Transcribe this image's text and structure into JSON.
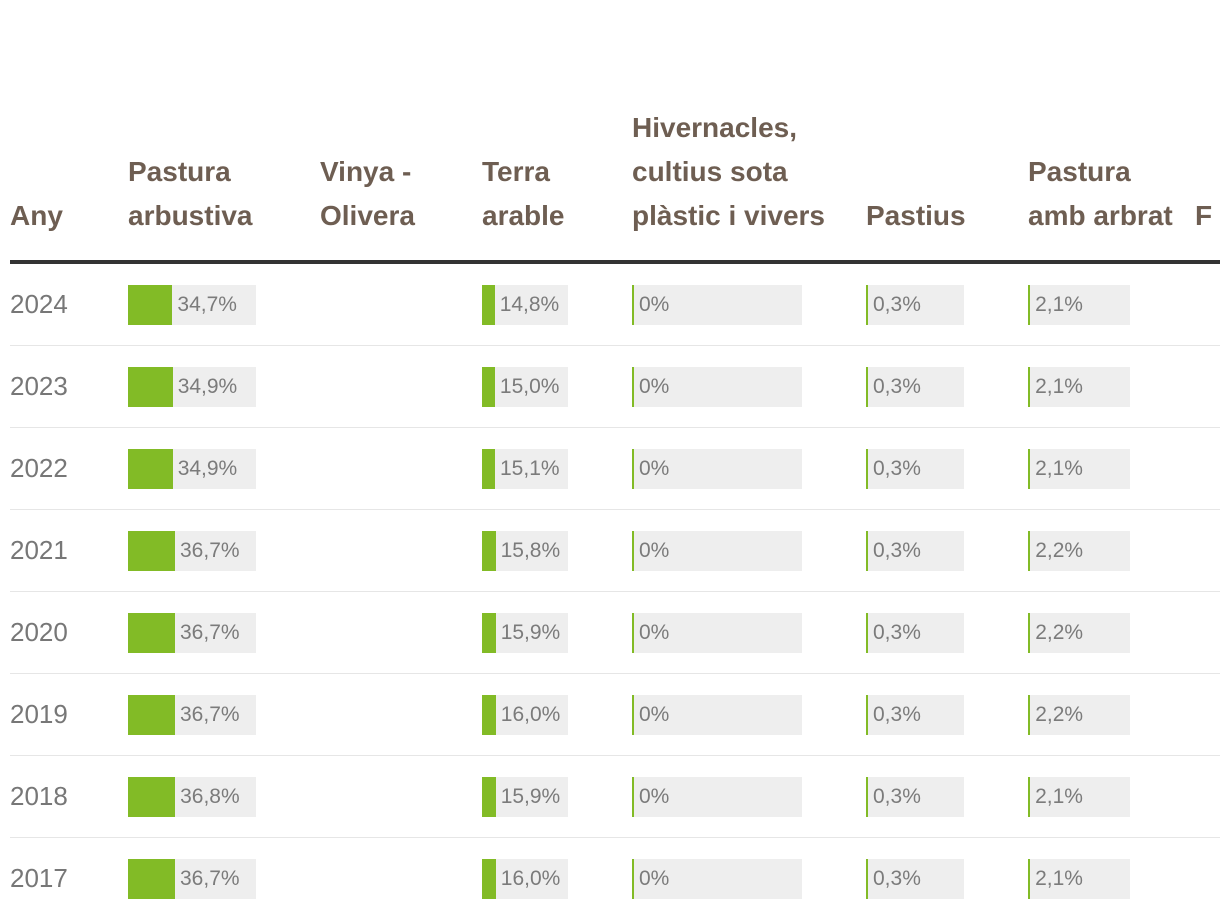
{
  "colors": {
    "bar_fill": "#82bb26",
    "bar_track": "#eeeeee",
    "header_text": "#6e5e52",
    "body_text": "#777777",
    "rule": "#333333"
  },
  "chart_data": {
    "type": "table",
    "columns": [
      {
        "key": "year",
        "label": "Any"
      },
      {
        "key": "pastura_arbustiva",
        "label": "Pastura arbustiva",
        "track_max": 100
      },
      {
        "key": "vinya_olivera",
        "label": "Vinya - Olivera"
      },
      {
        "key": "terra_arable",
        "label": "Terra arable",
        "track_max": 100
      },
      {
        "key": "hivernacles",
        "label": "Hivernacles, cultius sota plàstic i vivers",
        "track_max": 100
      },
      {
        "key": "pastius",
        "label": "Pastius",
        "track_max": 100
      },
      {
        "key": "pastura_arbrat",
        "label": "Pastura amb arbrat",
        "track_max": 100
      },
      {
        "key": "extra",
        "label": "F s O"
      }
    ],
    "rows": [
      {
        "year": "2024",
        "pastura_arbustiva": 34.7,
        "terra_arable": 14.8,
        "hivernacles": 0,
        "pastius": 0.3,
        "pastura_arbrat": 2.1
      },
      {
        "year": "2023",
        "pastura_arbustiva": 34.9,
        "terra_arable": 15.0,
        "hivernacles": 0,
        "pastius": 0.3,
        "pastura_arbrat": 2.1
      },
      {
        "year": "2022",
        "pastura_arbustiva": 34.9,
        "terra_arable": 15.1,
        "hivernacles": 0,
        "pastius": 0.3,
        "pastura_arbrat": 2.1
      },
      {
        "year": "2021",
        "pastura_arbustiva": 36.7,
        "terra_arable": 15.8,
        "hivernacles": 0,
        "pastius": 0.3,
        "pastura_arbrat": 2.2
      },
      {
        "year": "2020",
        "pastura_arbustiva": 36.7,
        "terra_arable": 15.9,
        "hivernacles": 0,
        "pastius": 0.3,
        "pastura_arbrat": 2.2
      },
      {
        "year": "2019",
        "pastura_arbustiva": 36.7,
        "terra_arable": 16.0,
        "hivernacles": 0,
        "pastius": 0.3,
        "pastura_arbrat": 2.2
      },
      {
        "year": "2018",
        "pastura_arbustiva": 36.8,
        "terra_arable": 15.9,
        "hivernacles": 0,
        "pastius": 0.3,
        "pastura_arbrat": 2.1
      },
      {
        "year": "2017",
        "pastura_arbustiva": 36.7,
        "terra_arable": 16.0,
        "hivernacles": 0,
        "pastius": 0.3,
        "pastura_arbrat": 2.1
      }
    ]
  },
  "cells": {
    "2024": {
      "pastura_arbustiva": "34,7%",
      "terra_arable": "14,8%",
      "hivernacles": "0%",
      "pastius": "0,3%",
      "pastura_arbrat": "2,1%"
    },
    "2023": {
      "pastura_arbustiva": "34,9%",
      "terra_arable": "15,0%",
      "hivernacles": "0%",
      "pastius": "0,3%",
      "pastura_arbrat": "2,1%"
    },
    "2022": {
      "pastura_arbustiva": "34,9%",
      "terra_arable": "15,1%",
      "hivernacles": "0%",
      "pastius": "0,3%",
      "pastura_arbrat": "2,1%"
    },
    "2021": {
      "pastura_arbustiva": "36,7%",
      "terra_arable": "15,8%",
      "hivernacles": "0%",
      "pastius": "0,3%",
      "pastura_arbrat": "2,2%"
    },
    "2020": {
      "pastura_arbustiva": "36,7%",
      "terra_arable": "15,9%",
      "hivernacles": "0%",
      "pastius": "0,3%",
      "pastura_arbrat": "2,2%"
    },
    "2019": {
      "pastura_arbustiva": "36,7%",
      "terra_arable": "16,0%",
      "hivernacles": "0%",
      "pastius": "0,3%",
      "pastura_arbrat": "2,2%"
    },
    "2018": {
      "pastura_arbustiva": "36,8%",
      "terra_arable": "15,9%",
      "hivernacles": "0%",
      "pastius": "0,3%",
      "pastura_arbrat": "2,1%"
    },
    "2017": {
      "pastura_arbustiva": "36,7%",
      "terra_arable": "16,0%",
      "hivernacles": "0%",
      "pastius": "0,3%",
      "pastura_arbrat": "2,1%"
    }
  }
}
